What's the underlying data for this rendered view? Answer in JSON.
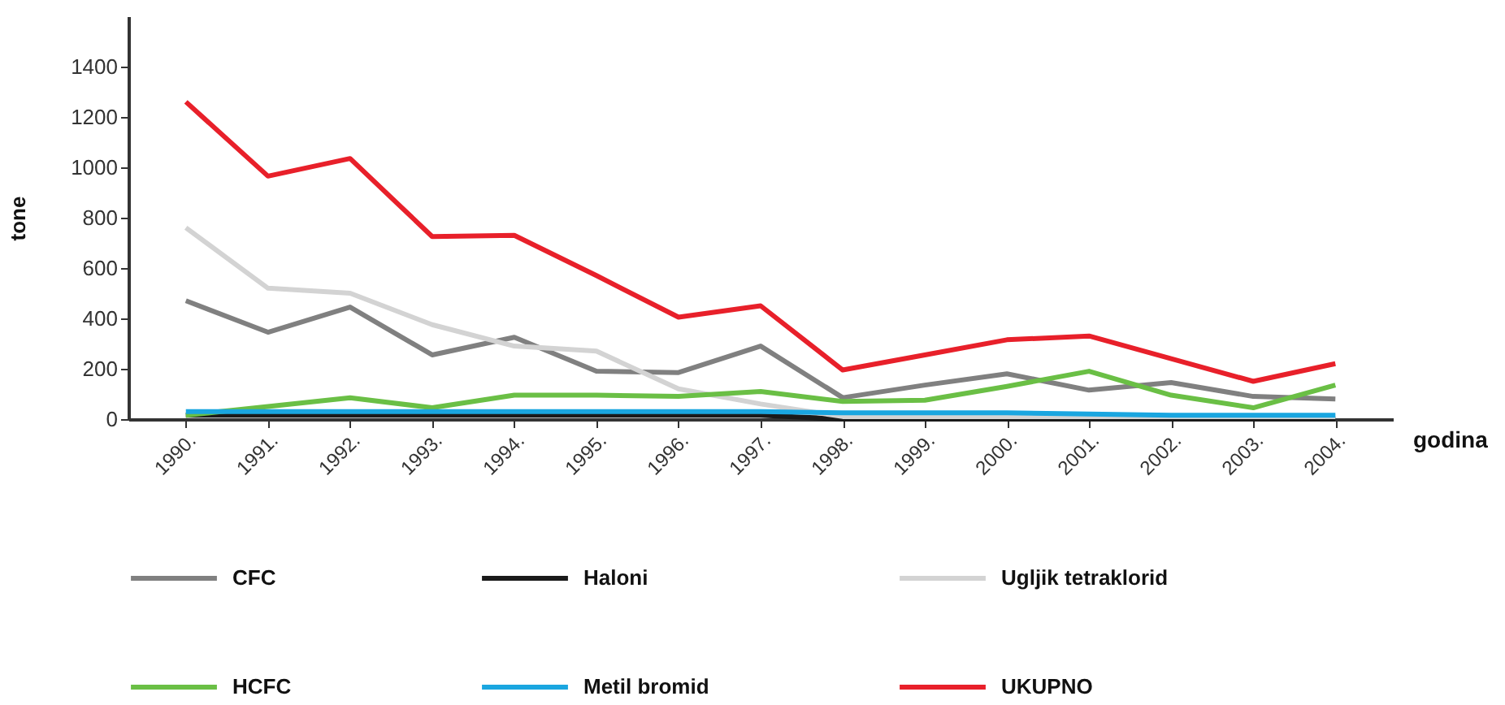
{
  "chart_data": {
    "type": "line",
    "xlabel": "godina",
    "ylabel": "tone",
    "categories": [
      "1990.",
      "1991.",
      "1992.",
      "1993.",
      "1994.",
      "1995.",
      "1996.",
      "1997.",
      "1998.",
      "1999.",
      "2000.",
      "2001.",
      "2002.",
      "2003.",
      "2004."
    ],
    "ylim": [
      0,
      1600
    ],
    "yticks": [
      0,
      200,
      400,
      600,
      800,
      1000,
      1200,
      1400
    ],
    "grid": false,
    "legend": "bottom",
    "marker": "none",
    "line_style": "solid",
    "series": [
      {
        "name": "CFC",
        "color": "#808080",
        "values": [
          470,
          345,
          445,
          255,
          325,
          190,
          185,
          290,
          85,
          135,
          180,
          115,
          145,
          90,
          80
        ]
      },
      {
        "name": "Haloni",
        "color": "#1a1a1a",
        "values": [
          15,
          15,
          15,
          15,
          15,
          15,
          15,
          15,
          0,
          0,
          0,
          0,
          0,
          0,
          0
        ]
      },
      {
        "name": "Ugljik tetraklorid",
        "color": "#d3d3d3",
        "values": [
          760,
          520,
          500,
          375,
          290,
          270,
          120,
          60,
          10,
          10,
          10,
          10,
          10,
          10,
          10
        ]
      },
      {
        "name": "HCFC",
        "color": "#6abf45",
        "values": [
          15,
          50,
          85,
          45,
          95,
          95,
          90,
          110,
          70,
          75,
          130,
          190,
          95,
          45,
          135
        ]
      },
      {
        "name": "Metil bromid",
        "color": "#1aa6e0",
        "values": [
          30,
          30,
          30,
          30,
          30,
          30,
          30,
          30,
          25,
          25,
          25,
          20,
          15,
          15,
          15
        ]
      },
      {
        "name": "UKUPNO",
        "color": "#e8202a",
        "values": [
          1260,
          965,
          1035,
          725,
          730,
          570,
          405,
          450,
          195,
          255,
          315,
          330,
          240,
          150,
          220
        ]
      }
    ]
  }
}
